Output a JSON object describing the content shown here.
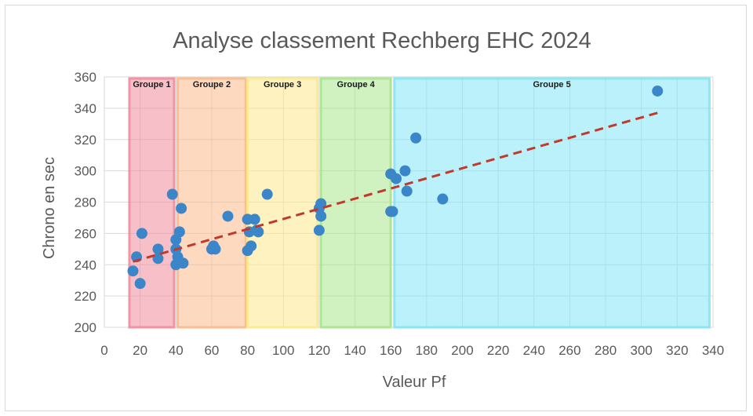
{
  "chart_data": {
    "type": "scatter",
    "title": "Analyse classement Rechberg EHC 2024",
    "xlabel": "Valeur Pf",
    "ylabel": "Chrono en sec",
    "xlim": [
      0,
      340
    ],
    "ylim": [
      200,
      360
    ],
    "x_ticks": [
      0,
      20,
      40,
      60,
      80,
      100,
      120,
      140,
      160,
      180,
      200,
      220,
      240,
      260,
      280,
      300,
      320,
      340
    ],
    "y_ticks": [
      200,
      220,
      240,
      260,
      280,
      300,
      320,
      340,
      360
    ],
    "grid": true,
    "groups": [
      {
        "label": "Groupe 1",
        "x_start": 14,
        "x_end": 39,
        "color": "#f08c9c"
      },
      {
        "label": "Groupe 2",
        "x_start": 41,
        "x_end": 79,
        "color": "#fcb98c"
      },
      {
        "label": "Groupe 3",
        "x_start": 80,
        "x_end": 119,
        "color": "#fde98c"
      },
      {
        "label": "Groupe 4",
        "x_start": 121,
        "x_end": 160,
        "color": "#a9e68c"
      },
      {
        "label": "Groupe 5",
        "x_start": 162,
        "x_end": 338,
        "color": "#84e6f5"
      }
    ],
    "series": [
      {
        "name": "Chrono",
        "color": "#3a86c8",
        "points": [
          [
            16,
            236
          ],
          [
            18,
            245
          ],
          [
            20,
            228
          ],
          [
            21,
            260
          ],
          [
            30,
            250
          ],
          [
            30,
            244
          ],
          [
            38,
            285
          ],
          [
            40,
            256
          ],
          [
            40,
            250
          ],
          [
            40,
            240
          ],
          [
            41,
            245
          ],
          [
            42,
            261
          ],
          [
            43,
            276
          ],
          [
            44,
            241
          ],
          [
            60,
            250
          ],
          [
            61,
            252
          ],
          [
            62,
            250
          ],
          [
            69,
            271
          ],
          [
            80,
            269
          ],
          [
            80,
            249
          ],
          [
            81,
            261
          ],
          [
            82,
            252
          ],
          [
            84,
            269
          ],
          [
            85,
            262
          ],
          [
            86,
            261
          ],
          [
            91,
            285
          ],
          [
            120,
            262
          ],
          [
            120,
            276
          ],
          [
            121,
            271
          ],
          [
            121,
            279
          ],
          [
            160,
            298
          ],
          [
            160,
            274
          ],
          [
            161,
            274
          ],
          [
            163,
            295
          ],
          [
            168,
            300
          ],
          [
            169,
            287
          ],
          [
            174,
            321
          ],
          [
            189,
            282
          ],
          [
            309,
            351
          ]
        ]
      }
    ],
    "trendline": {
      "type": "linear",
      "color": "#c0392b",
      "points": [
        [
          16,
          242
        ],
        [
          309,
          337
        ]
      ]
    }
  }
}
